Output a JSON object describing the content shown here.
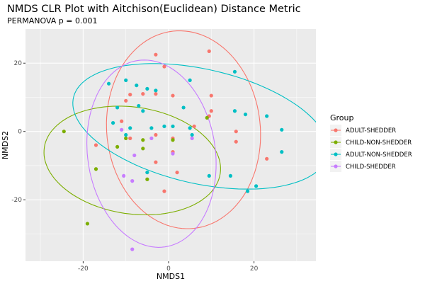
{
  "chart_data": {
    "type": "scatter",
    "title": "NMDS CLR Plot with Aitchison(Euclidean) Distance Metric",
    "subtitle": "PERMANOVA p = 0.001",
    "xlabel": "NMDS1",
    "ylabel": "NMDS2",
    "xlim": [
      -33.5,
      34.5
    ],
    "ylim": [
      -38,
      30
    ],
    "xticks": [
      -20,
      0,
      20
    ],
    "yticks": [
      -20,
      0,
      20
    ],
    "grid": true,
    "legend": {
      "title": "Group",
      "position": "right"
    },
    "panel_background": "#EBEBEB",
    "series": [
      {
        "name": "ADULT-SHEDDER",
        "color": "#F8766D",
        "ellipse": {
          "cx": 3.5,
          "cy": 0.5,
          "rx": 18.0,
          "ry": 29.0,
          "angle": 3
        },
        "points": [
          [
            9.5,
            23.5
          ],
          [
            -3,
            22.5
          ],
          [
            -1,
            19
          ],
          [
            -10,
            9
          ],
          [
            -9,
            10.8
          ],
          [
            -3,
            11
          ],
          [
            -6,
            11
          ],
          [
            1,
            10.5
          ],
          [
            10,
            10.5
          ],
          [
            10,
            6
          ],
          [
            9.5,
            4.5
          ],
          [
            6,
            1.5
          ],
          [
            15.8,
            0
          ],
          [
            -11,
            3
          ],
          [
            -3,
            -1
          ],
          [
            -9,
            -2
          ],
          [
            -17,
            -4
          ],
          [
            1,
            -2
          ],
          [
            15.8,
            -3
          ],
          [
            1,
            -6
          ],
          [
            -3,
            -9
          ],
          [
            2,
            -12
          ],
          [
            23,
            -8
          ],
          [
            -1,
            -17.5
          ]
        ]
      },
      {
        "name": "CHILD-NON-SHEDDER",
        "color": "#7CAE00",
        "ellipse": {
          "cx": -8.5,
          "cy": -8.5,
          "rx": 15.5,
          "ry": 21.0,
          "angle": 75
        },
        "points": [
          [
            -24.5,
            0
          ],
          [
            -10,
            -2
          ],
          [
            -6,
            -2.5
          ],
          [
            1,
            -2.5
          ],
          [
            -12,
            -4.5
          ],
          [
            -6,
            -5
          ],
          [
            -17,
            -11
          ],
          [
            -5,
            -14
          ],
          [
            -19,
            -27
          ],
          [
            9,
            4
          ]
        ]
      },
      {
        "name": "ADULT-NON-SHEDDER",
        "color": "#00BFC4",
        "ellipse": {
          "cx": 7.5,
          "cy": 1.5,
          "rx": 16.5,
          "ry": 31.0,
          "angle": 72
        },
        "points": [
          [
            15.5,
            17.5
          ],
          [
            -10,
            15
          ],
          [
            -7.5,
            13.5
          ],
          [
            -5,
            12.5
          ],
          [
            -14,
            14
          ],
          [
            -3,
            12
          ],
          [
            5,
            15
          ],
          [
            -12,
            7
          ],
          [
            -7,
            7.5
          ],
          [
            3.5,
            7
          ],
          [
            -6,
            6
          ],
          [
            15.5,
            6
          ],
          [
            18,
            5
          ],
          [
            23,
            4.5
          ],
          [
            -13,
            2.5
          ],
          [
            -9,
            1
          ],
          [
            -4,
            1
          ],
          [
            -1,
            1.5
          ],
          [
            1,
            1.5
          ],
          [
            5,
            1
          ],
          [
            5.5,
            -1
          ],
          [
            -10,
            -1
          ],
          [
            26.5,
            0.5
          ],
          [
            26.5,
            -6
          ],
          [
            -5,
            -12
          ],
          [
            9.5,
            -13
          ],
          [
            14.5,
            -13
          ],
          [
            18.5,
            -17.5
          ],
          [
            20.5,
            -16
          ]
        ]
      },
      {
        "name": "CHILD-SHEDDER",
        "color": "#C77CFF",
        "ellipse": {
          "cx": -4.0,
          "cy": -6.5,
          "rx": 15.0,
          "ry": 27.5,
          "angle": 5
        },
        "points": [
          [
            -11,
            0.5
          ],
          [
            -4,
            -2
          ],
          [
            5.5,
            -2
          ],
          [
            -8,
            -7
          ],
          [
            1,
            -6.5
          ],
          [
            -10.5,
            -13
          ],
          [
            -8.5,
            -14.5
          ],
          [
            -8.5,
            -34.5
          ]
        ]
      }
    ]
  }
}
